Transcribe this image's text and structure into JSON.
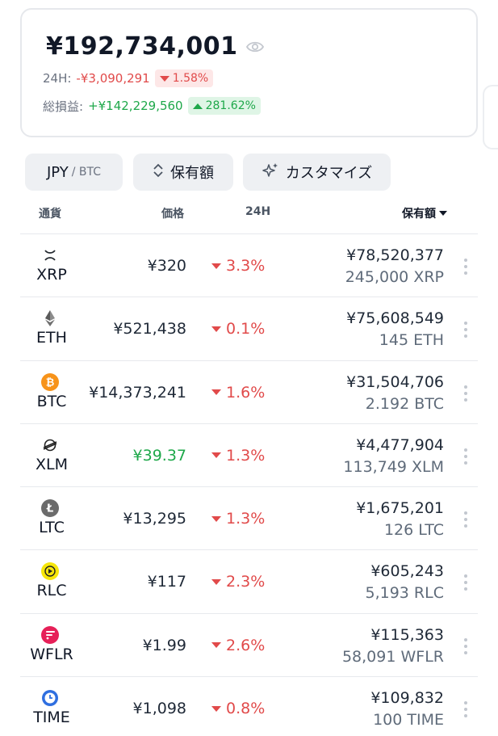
{
  "summary": {
    "total": "¥192,734,001",
    "day_label": "24H:",
    "day_change_value": "-¥3,090,291",
    "day_change_pct": "1.58%",
    "pnl_label": "総損益:",
    "pnl_value": "+¥142,229,560",
    "pnl_pct": "281.62%"
  },
  "toolbar": {
    "currency_main": "JPY",
    "currency_sub": "/ BTC",
    "sort_label": "保有額",
    "customize_label": "カスタマイズ"
  },
  "table_headers": {
    "currency": "通貨",
    "price": "価格",
    "change": "24H",
    "holding": "保有額"
  },
  "colors": {
    "negative": "#e14a4a",
    "positive": "#1ea84a",
    "chip_bg": "#eef0f3"
  },
  "rows": [
    {
      "symbol": "XRP",
      "icon": "xrp-icon",
      "price": "¥320",
      "change": "3.3%",
      "value": "¥78,520,377",
      "amount": "245,000 XRP"
    },
    {
      "symbol": "ETH",
      "icon": "eth-icon",
      "price": "¥521,438",
      "change": "0.1%",
      "value": "¥75,608,549",
      "amount": "145 ETH"
    },
    {
      "symbol": "BTC",
      "icon": "btc-icon",
      "price": "¥14,373,241",
      "change": "1.6%",
      "value": "¥31,504,706",
      "amount": "2.192 BTC"
    },
    {
      "symbol": "XLM",
      "icon": "xlm-icon",
      "price": "¥39.37",
      "change": "1.3%",
      "value": "¥4,477,904",
      "amount": "113,749 XLM"
    },
    {
      "symbol": "LTC",
      "icon": "ltc-icon",
      "price": "¥13,295",
      "change": "1.3%",
      "value": "¥1,675,201",
      "amount": "126 LTC"
    },
    {
      "symbol": "RLC",
      "icon": "rlc-icon",
      "price": "¥117",
      "change": "2.3%",
      "value": "¥605,243",
      "amount": "5,193 RLC"
    },
    {
      "symbol": "WFLR",
      "icon": "wflr-icon",
      "price": "¥1.99",
      "change": "2.6%",
      "value": "¥115,363",
      "amount": "58,091 WFLR"
    },
    {
      "symbol": "TIME",
      "icon": "time-icon",
      "price": "¥1,098",
      "change": "0.8%",
      "value": "¥109,832",
      "amount": "100 TIME"
    }
  ]
}
